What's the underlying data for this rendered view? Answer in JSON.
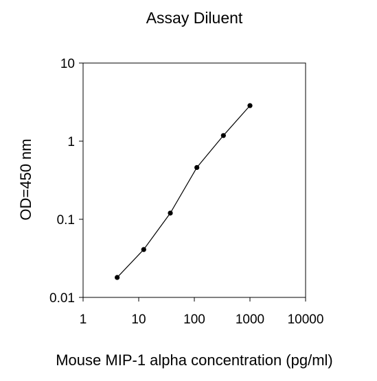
{
  "chart_data": {
    "type": "scatter",
    "title": "Assay Diluent",
    "xlabel": "Mouse MIP-1 alpha concentration (pg/ml)",
    "ylabel": "OD=450 nm",
    "x_scale": "log",
    "y_scale": "log",
    "xlim": [
      1,
      10000
    ],
    "ylim": [
      0.01,
      10
    ],
    "x_ticks": [
      1,
      10,
      100,
      1000,
      10000
    ],
    "x_tick_labels": [
      "1",
      "10",
      "100",
      "1000",
      "10000"
    ],
    "y_ticks": [
      0.01,
      0.1,
      1,
      10
    ],
    "y_tick_labels": [
      "0.01",
      "0.1",
      "1",
      "10"
    ],
    "grid": false,
    "legend": "none",
    "series": [
      {
        "x": [
          4.1,
          12.3,
          37,
          111,
          333,
          1000
        ],
        "y": [
          0.018,
          0.041,
          0.12,
          0.46,
          1.18,
          2.85
        ],
        "marker": "circle",
        "line": true,
        "color": "#000000"
      }
    ]
  }
}
